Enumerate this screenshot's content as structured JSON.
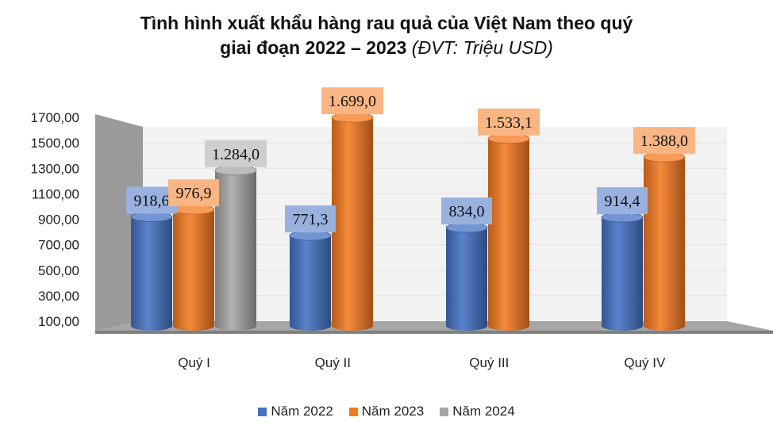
{
  "title": {
    "line1": "Tình hình xuất khẩu hàng rau quả của Việt Nam theo quý",
    "line2": "giai đoạn  2022 – 2023",
    "unit": "(ĐVT: Triệu USD)"
  },
  "colors": {
    "Năm 2022": "#4472c4",
    "Năm 2023": "#f47a20",
    "Năm 2024": "#a6a6a6"
  },
  "chart_data": {
    "type": "bar",
    "title": "Tình hình xuất khẩu hàng rau quả của Việt Nam theo quý giai đoạn  2022 – 2023 (ĐVT: Triệu USD)",
    "categories": [
      "Quý I",
      "Quý II",
      "Quý III",
      "Quý IV"
    ],
    "series": [
      {
        "name": "Năm 2022",
        "values": [
          918.6,
          771.3,
          834.0,
          914.4
        ],
        "labels": [
          "918,6",
          "771,3",
          "834,0",
          "914,4"
        ]
      },
      {
        "name": "Năm 2023",
        "values": [
          976.9,
          1699.0,
          1533.1,
          1388.0
        ],
        "labels": [
          "976,9",
          "1.699,0",
          "1.533,1",
          "1.388,0"
        ]
      },
      {
        "name": "Năm 2024",
        "values": [
          1284.0,
          null,
          null,
          null
        ],
        "labels": [
          "1.284,0",
          null,
          null,
          null
        ]
      }
    ],
    "ylim": [
      100,
      1700
    ],
    "yticks": [
      "100,00",
      "300,00",
      "500,00",
      "700,00",
      "900,00",
      "1100,00",
      "1300,00",
      "1500,00",
      "1700,00"
    ],
    "grid": true,
    "legend": "bottom"
  }
}
